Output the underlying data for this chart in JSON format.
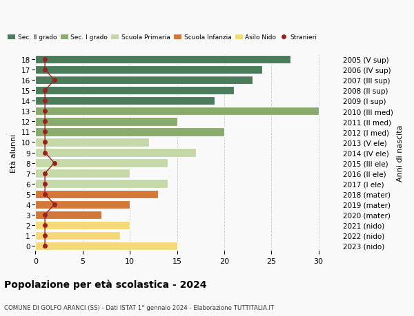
{
  "ages": [
    0,
    1,
    2,
    3,
    4,
    5,
    6,
    7,
    8,
    9,
    10,
    11,
    12,
    13,
    14,
    15,
    16,
    17,
    18
  ],
  "years": [
    "2023 (nido)",
    "2022 (nido)",
    "2021 (nido)",
    "2020 (mater)",
    "2019 (mater)",
    "2018 (mater)",
    "2017 (I ele)",
    "2016 (II ele)",
    "2015 (III ele)",
    "2014 (IV ele)",
    "2013 (V ele)",
    "2012 (I med)",
    "2011 (II med)",
    "2010 (III med)",
    "2009 (I sup)",
    "2008 (II sup)",
    "2007 (III sup)",
    "2006 (IV sup)",
    "2005 (V sup)"
  ],
  "values": [
    15,
    9,
    10,
    7,
    10,
    13,
    14,
    10,
    14,
    17,
    12,
    20,
    15,
    30,
    19,
    21,
    23,
    24,
    27
  ],
  "stranieri": [
    1,
    1,
    1,
    1,
    2,
    1,
    1,
    1,
    2,
    1,
    1,
    1,
    1,
    1,
    1,
    1,
    2,
    1,
    1
  ],
  "categories": {
    "sec2": [
      14,
      15,
      16,
      17,
      18
    ],
    "sec1": [
      11,
      12,
      13
    ],
    "primaria": [
      6,
      7,
      8,
      9,
      10
    ],
    "infanzia": [
      3,
      4,
      5
    ],
    "nido": [
      0,
      1,
      2
    ]
  },
  "colors": {
    "sec2": "#4a7c59",
    "sec1": "#8aab6e",
    "primaria": "#c5d9a8",
    "infanzia": "#d4783a",
    "nido": "#f5d87a",
    "stranieri": "#9b2020",
    "stranieri_line": "#9b2020"
  },
  "legend_labels": [
    "Sec. II grado",
    "Sec. I grado",
    "Scuola Primaria",
    "Scuola Infanzia",
    "Asilo Nido",
    "Stranieri"
  ],
  "title": "Popolazione per età scolastica - 2024",
  "subtitle": "COMUNE DI GOLFO ARANCI (SS) - Dati ISTAT 1° gennaio 2024 - Elaborazione TUTTITALIA.IT",
  "ylabel_left": "Età alunni",
  "ylabel_right": "Anni di nascita",
  "xlim": [
    0,
    32
  ],
  "background_color": "#f9f9f9"
}
